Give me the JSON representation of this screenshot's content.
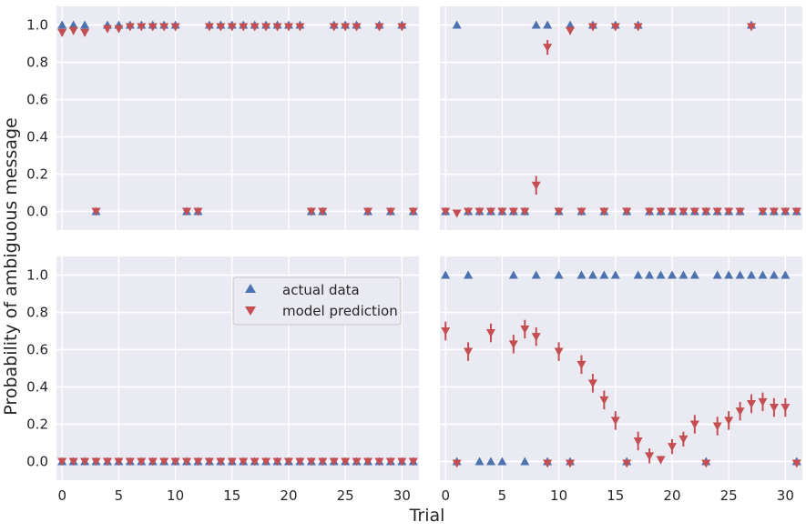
{
  "figure": {
    "xlabel": "Trial",
    "ylabel": "Probability of ambiguous message",
    "colors": {
      "actual": "#4c72b0",
      "model": "#c44e52",
      "panel_bg": "#eaeaf2",
      "grid": "#ffffff"
    }
  },
  "legend": {
    "entries": [
      {
        "label": "actual data",
        "marker": "triangle-up"
      },
      {
        "label": "model prediction",
        "marker": "triangle-down"
      }
    ]
  },
  "chart_data": [
    {
      "type": "scatter",
      "panel": "top-left",
      "xlim": [
        -0.5,
        31.5
      ],
      "ylim": [
        -0.1,
        1.1
      ],
      "xticks": [
        0,
        5,
        10,
        15,
        20,
        25,
        30
      ],
      "yticks": [
        0.0,
        0.2,
        0.4,
        0.6,
        0.8,
        1.0
      ],
      "grid": true,
      "series": [
        {
          "name": "actual data",
          "x": [
            0,
            1,
            2,
            3,
            4,
            5,
            6,
            7,
            8,
            9,
            10,
            11,
            12,
            13,
            14,
            15,
            16,
            17,
            18,
            19,
            20,
            21,
            22,
            23,
            24,
            25,
            26,
            27,
            28,
            29,
            30,
            31
          ],
          "values": [
            1,
            1,
            1,
            0,
            1,
            1,
            1,
            1,
            1,
            1,
            1,
            0,
            0,
            1,
            1,
            1,
            1,
            1,
            1,
            1,
            1,
            1,
            0,
            0,
            1,
            1,
            1,
            0,
            1,
            0,
            1,
            0
          ]
        },
        {
          "name": "model prediction",
          "x": [
            0,
            1,
            2,
            3,
            4,
            5,
            6,
            7,
            8,
            9,
            10,
            11,
            12,
            13,
            14,
            15,
            16,
            17,
            18,
            19,
            20,
            21,
            22,
            23,
            24,
            25,
            26,
            27,
            28,
            29,
            30,
            31
          ],
          "values": [
            0.96,
            0.97,
            0.96,
            0.0,
            0.98,
            0.98,
            0.99,
            0.99,
            0.99,
            0.99,
            0.99,
            0.0,
            0.0,
            0.99,
            0.99,
            0.99,
            0.99,
            0.99,
            0.99,
            0.99,
            0.99,
            0.99,
            0.0,
            0.0,
            0.99,
            0.99,
            0.99,
            0.0,
            0.99,
            0.0,
            0.99,
            0.0
          ],
          "errors": [
            0.02,
            0.02,
            0.02,
            0,
            0.01,
            0.01,
            0.01,
            0,
            0,
            0,
            0,
            0,
            0,
            0,
            0,
            0,
            0,
            0,
            0,
            0,
            0,
            0,
            0,
            0,
            0,
            0,
            0,
            0,
            0,
            0,
            0,
            0
          ]
        }
      ]
    },
    {
      "type": "scatter",
      "panel": "top-right",
      "xlim": [
        -0.5,
        31.5
      ],
      "ylim": [
        -0.1,
        1.1
      ],
      "xticks": [
        0,
        5,
        10,
        15,
        20,
        25,
        30
      ],
      "yticks": [
        0.0,
        0.2,
        0.4,
        0.6,
        0.8,
        1.0
      ],
      "grid": true,
      "series": [
        {
          "name": "actual data",
          "x": [
            0,
            1,
            2,
            3,
            4,
            5,
            6,
            7,
            8,
            9,
            10,
            11,
            12,
            13,
            14,
            15,
            16,
            17,
            18,
            19,
            20,
            21,
            22,
            23,
            24,
            25,
            26,
            27,
            28,
            29,
            30,
            31
          ],
          "values": [
            0,
            1,
            0,
            0,
            0,
            0,
            0,
            0,
            1,
            1,
            0,
            1,
            0,
            1,
            0,
            1,
            0,
            1,
            0,
            0,
            0,
            0,
            0,
            0,
            0,
            0,
            0,
            1,
            0,
            0,
            0,
            0
          ]
        },
        {
          "name": "model prediction",
          "x": [
            0,
            1,
            2,
            3,
            4,
            5,
            6,
            7,
            8,
            9,
            10,
            11,
            12,
            13,
            14,
            15,
            16,
            17,
            18,
            19,
            20,
            21,
            22,
            23,
            24,
            25,
            26,
            27,
            28,
            29,
            30,
            31
          ],
          "values": [
            0.0,
            -0.01,
            0.0,
            0.0,
            0.0,
            0.0,
            0.0,
            0.0,
            0.14,
            0.88,
            0.0,
            0.97,
            0.0,
            0.99,
            0.0,
            0.99,
            0.0,
            0.99,
            0.0,
            0.0,
            0.0,
            0.0,
            0.0,
            0.0,
            0.0,
            0.0,
            0.0,
            0.99,
            0.0,
            0.0,
            0.0,
            0.0
          ],
          "errors": [
            0,
            0,
            0,
            0,
            0,
            0,
            0,
            0,
            0.05,
            0.04,
            0,
            0.02,
            0,
            0,
            0,
            0,
            0,
            0,
            0,
            0,
            0,
            0,
            0,
            0,
            0,
            0,
            0,
            0,
            0,
            0,
            0,
            0
          ]
        }
      ]
    },
    {
      "type": "scatter",
      "panel": "bottom-left",
      "xlim": [
        -0.5,
        31.5
      ],
      "ylim": [
        -0.1,
        1.1
      ],
      "xticks": [
        0,
        5,
        10,
        15,
        20,
        25,
        30
      ],
      "yticks": [
        0.0,
        0.2,
        0.4,
        0.6,
        0.8,
        1.0
      ],
      "grid": true,
      "legend": "upper-center",
      "series": [
        {
          "name": "actual data",
          "x": [
            0,
            1,
            2,
            3,
            4,
            5,
            6,
            7,
            8,
            9,
            10,
            11,
            12,
            13,
            14,
            15,
            16,
            17,
            18,
            19,
            20,
            21,
            22,
            23,
            24,
            25,
            26,
            27,
            28,
            29,
            30,
            31
          ],
          "values": [
            0,
            0,
            0,
            0,
            0,
            0,
            0,
            0,
            0,
            0,
            0,
            0,
            0,
            0,
            0,
            0,
            0,
            0,
            0,
            0,
            0,
            0,
            0,
            0,
            0,
            0,
            0,
            0,
            0,
            0,
            0,
            0
          ]
        },
        {
          "name": "model prediction",
          "x": [
            0,
            1,
            2,
            3,
            4,
            5,
            6,
            7,
            8,
            9,
            10,
            11,
            12,
            13,
            14,
            15,
            16,
            17,
            18,
            19,
            20,
            21,
            22,
            23,
            24,
            25,
            26,
            27,
            28,
            29,
            30,
            31
          ],
          "values": [
            0,
            0,
            0,
            0,
            0,
            0,
            0,
            0,
            0,
            0,
            0,
            0,
            0,
            0,
            0,
            0,
            0,
            0,
            0,
            0,
            0,
            0,
            0,
            0,
            0,
            0,
            0,
            0,
            0,
            0,
            0,
            0
          ],
          "errors": [
            0,
            0,
            0,
            0,
            0,
            0,
            0,
            0,
            0,
            0,
            0,
            0,
            0,
            0,
            0,
            0,
            0,
            0,
            0,
            0,
            0,
            0,
            0,
            0,
            0,
            0,
            0,
            0,
            0,
            0,
            0,
            0
          ]
        }
      ]
    },
    {
      "type": "scatter",
      "panel": "bottom-right",
      "xlim": [
        -0.5,
        31.5
      ],
      "ylim": [
        -0.1,
        1.1
      ],
      "xticks": [
        0,
        5,
        10,
        15,
        20,
        25,
        30
      ],
      "yticks": [
        0.0,
        0.2,
        0.4,
        0.6,
        0.8,
        1.0
      ],
      "grid": true,
      "series": [
        {
          "name": "actual data",
          "x": [
            0,
            1,
            2,
            3,
            4,
            5,
            6,
            7,
            8,
            9,
            10,
            11,
            12,
            13,
            14,
            15,
            16,
            17,
            18,
            19,
            20,
            21,
            22,
            23,
            24,
            25,
            26,
            27,
            28,
            29,
            30,
            31
          ],
          "values": [
            1,
            0,
            1,
            0,
            0,
            0,
            1,
            0,
            1,
            0,
            1,
            0,
            1,
            1,
            1,
            1,
            0,
            1,
            1,
            1,
            1,
            1,
            1,
            0,
            1,
            1,
            1,
            1,
            1,
            1,
            1,
            0
          ]
        },
        {
          "name": "model prediction",
          "x": [
            0,
            1,
            2,
            3,
            4,
            5,
            6,
            7,
            8,
            9,
            10,
            11,
            12,
            13,
            14,
            15,
            16,
            17,
            18,
            19,
            20,
            21,
            22,
            23,
            24,
            25,
            26,
            27,
            28,
            29,
            30,
            31
          ],
          "values": [
            0.7,
            -0.01,
            0.59,
            null,
            0.69,
            null,
            0.63,
            0.71,
            0.67,
            -0.01,
            0.59,
            -0.01,
            0.52,
            0.42,
            0.33,
            0.22,
            -0.01,
            0.11,
            0.03,
            0.01,
            0.08,
            0.12,
            0.2,
            -0.01,
            0.19,
            0.22,
            0.27,
            0.31,
            0.32,
            0.29,
            0.29,
            -0.01
          ],
          "errors": [
            0.05,
            0,
            0.05,
            0,
            0.05,
            0,
            0.05,
            0.05,
            0.05,
            0,
            0.05,
            0,
            0.05,
            0.05,
            0.05,
            0.05,
            0,
            0.05,
            0.04,
            0.02,
            0.04,
            0.04,
            0.05,
            0,
            0.05,
            0.05,
            0.05,
            0.05,
            0.05,
            0.05,
            0.05,
            0
          ]
        }
      ]
    }
  ]
}
